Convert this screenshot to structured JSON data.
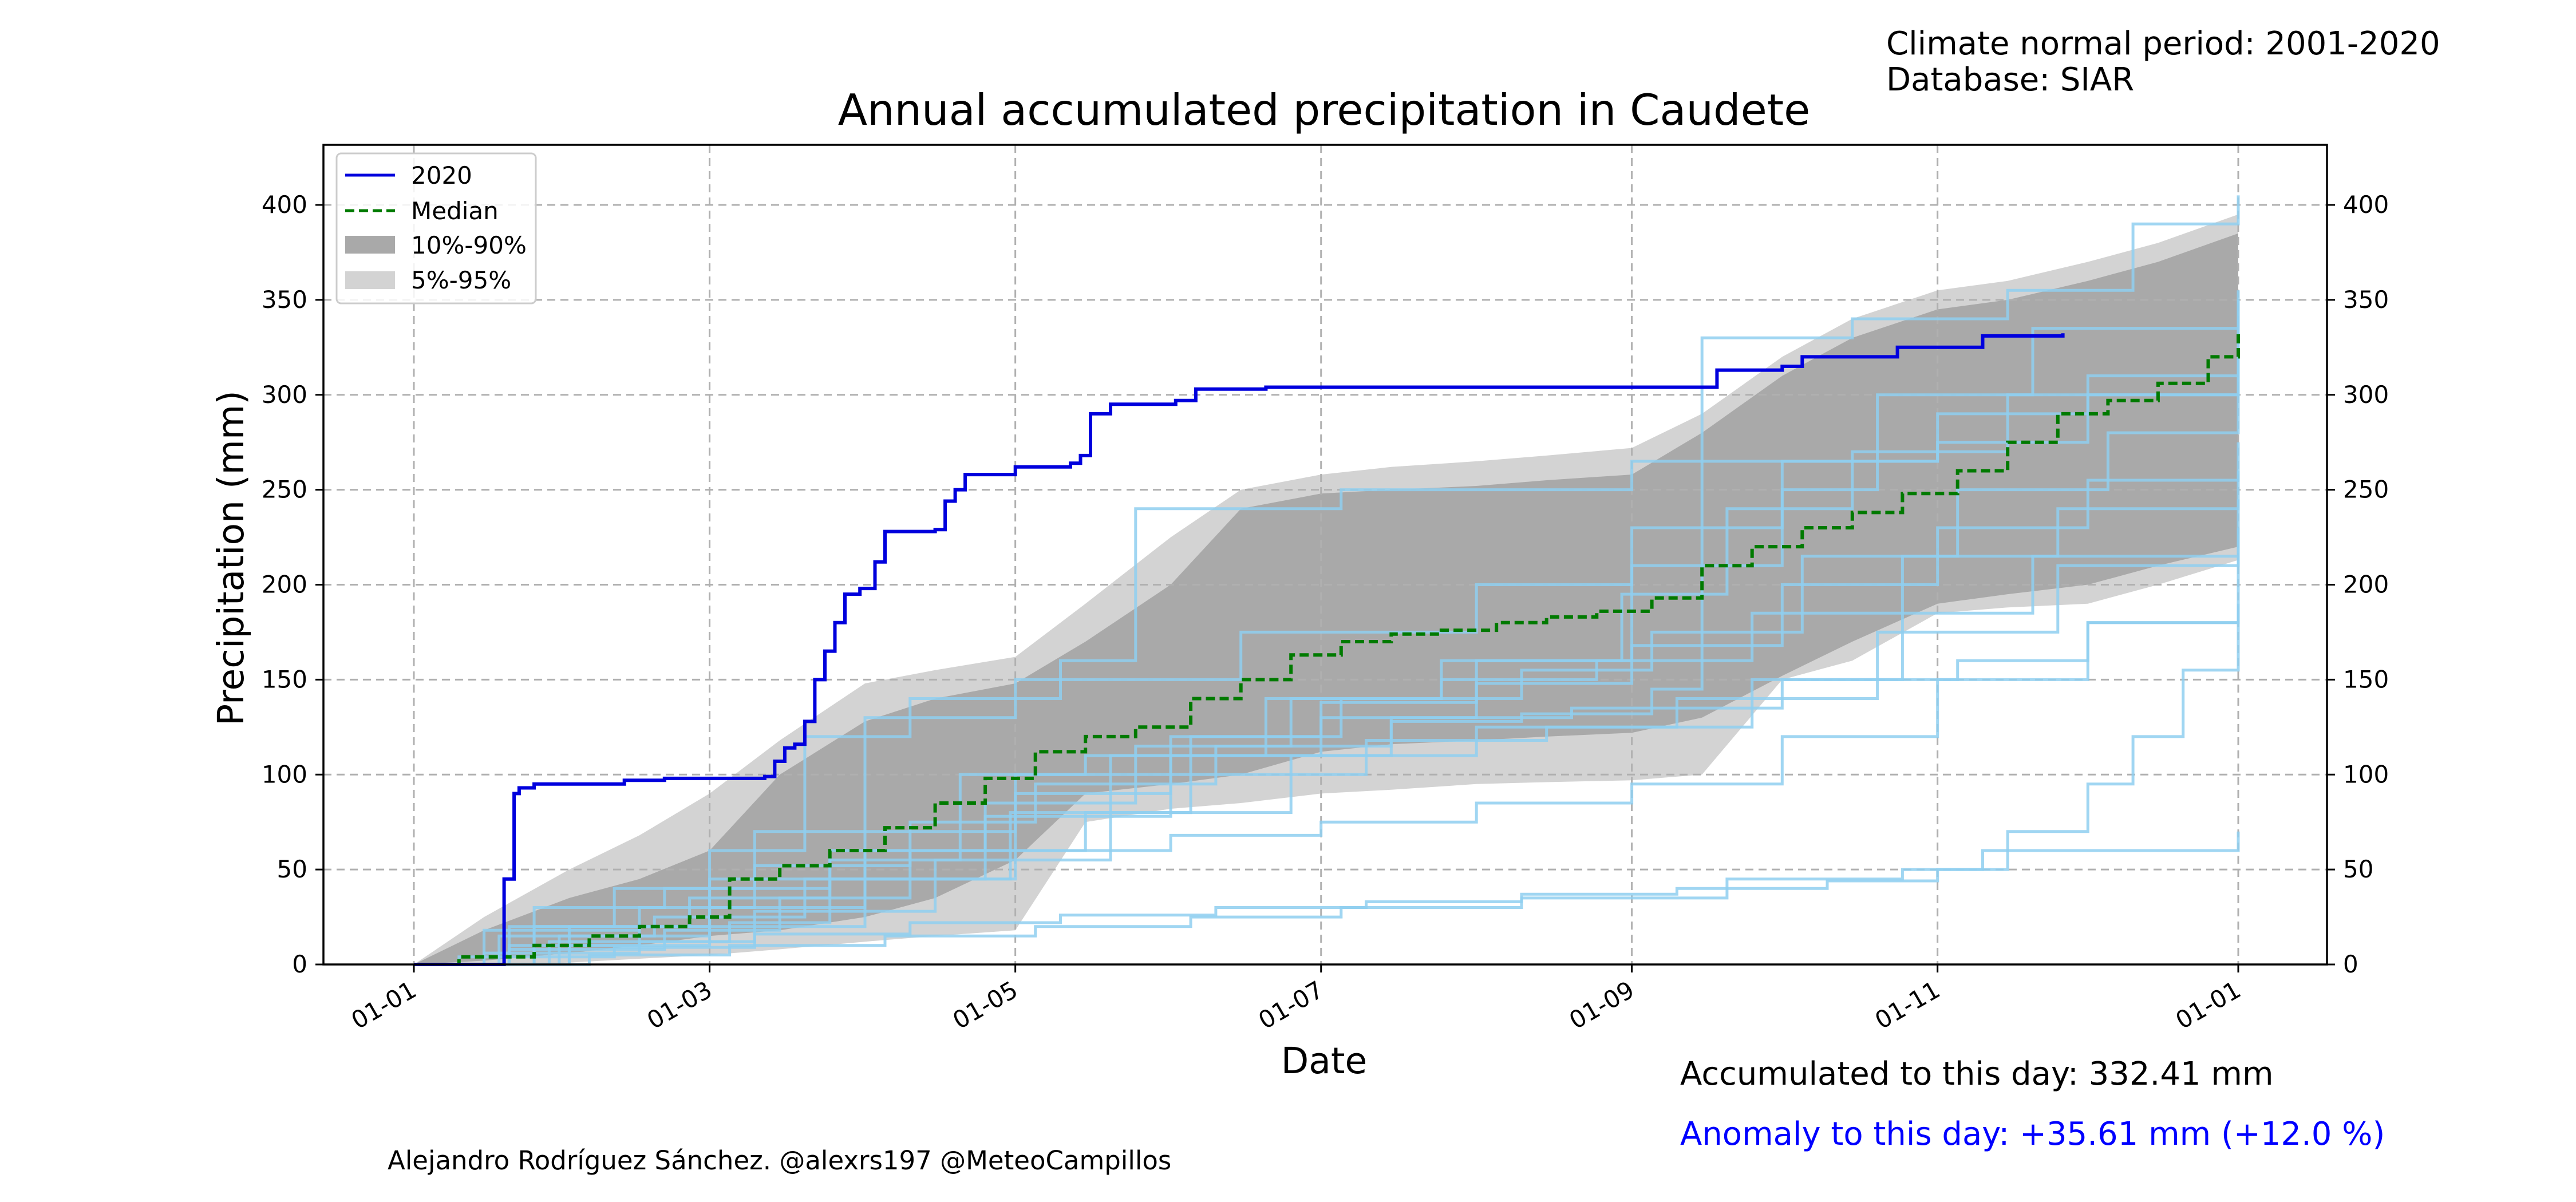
{
  "header": {
    "normal_period": "Climate normal period: 2001-2020",
    "database": "Database: SIAR"
  },
  "footer": {
    "accumulated": "Accumulated to this day: 332.41 mm",
    "anomaly": "Anomaly to this day: +35.61 mm (+12.0 %)",
    "credit": "Alejandro Rodríguez Sánchez. @alexrs197 @MeteoCampillos"
  },
  "colors": {
    "current_year": "#0000dd",
    "median": "#007a00",
    "band_10_90": "#a9a9a9",
    "band_5_95": "#d3d3d3",
    "historical_years": "#8fcff0",
    "anomaly_text": "#0000ff"
  },
  "chart_data": {
    "type": "line",
    "title": "Annual accumulated precipitation in Caudete",
    "xlabel": "Date",
    "ylabel": "Precipitation (mm)",
    "x_ticks": [
      "01-01",
      "01-03",
      "01-05",
      "01-07",
      "01-09",
      "01-11",
      "01-01"
    ],
    "x_range": [
      "01-01",
      "12-31"
    ],
    "y_ticks": [
      0,
      50,
      100,
      150,
      200,
      250,
      300,
      350,
      400
    ],
    "ylim": [
      0,
      430
    ],
    "grid": true,
    "legend_position": "top-left",
    "legend": [
      "2020",
      "Median",
      "10%-90%",
      "5%-95%"
    ],
    "series": [
      {
        "name": "2020",
        "points": [
          [
            "01-01",
            0
          ],
          [
            "01-10",
            0
          ],
          [
            "01-17",
            0
          ],
          [
            "01-19",
            45
          ],
          [
            "01-21",
            90
          ],
          [
            "01-22",
            93
          ],
          [
            "01-25",
            95
          ],
          [
            "02-10",
            95
          ],
          [
            "02-12",
            97
          ],
          [
            "02-20",
            98
          ],
          [
            "03-10",
            98
          ],
          [
            "03-12",
            99
          ],
          [
            "03-14",
            107
          ],
          [
            "03-16",
            114
          ],
          [
            "03-18",
            116
          ],
          [
            "03-20",
            128
          ],
          [
            "03-22",
            150
          ],
          [
            "03-24",
            165
          ],
          [
            "03-26",
            180
          ],
          [
            "03-28",
            195
          ],
          [
            "03-31",
            198
          ],
          [
            "04-03",
            212
          ],
          [
            "04-05",
            228
          ],
          [
            "04-15",
            229
          ],
          [
            "04-17",
            244
          ],
          [
            "04-19",
            250
          ],
          [
            "04-21",
            258
          ],
          [
            "05-01",
            262
          ],
          [
            "05-12",
            264
          ],
          [
            "05-14",
            268
          ],
          [
            "05-16",
            290
          ],
          [
            "05-20",
            295
          ],
          [
            "06-02",
            297
          ],
          [
            "06-06",
            303
          ],
          [
            "06-20",
            304
          ],
          [
            "09-15",
            304
          ],
          [
            "09-18",
            313
          ],
          [
            "10-01",
            315
          ],
          [
            "10-05",
            320
          ],
          [
            "10-20",
            320
          ],
          [
            "10-24",
            325
          ],
          [
            "11-05",
            325
          ],
          [
            "11-10",
            331
          ],
          [
            "11-26",
            332.41
          ]
        ]
      },
      {
        "name": "Median",
        "points": [
          [
            "01-01",
            0
          ],
          [
            "01-10",
            4
          ],
          [
            "01-25",
            10
          ],
          [
            "02-05",
            15
          ],
          [
            "02-15",
            20
          ],
          [
            "02-25",
            25
          ],
          [
            "03-05",
            45
          ],
          [
            "03-15",
            52
          ],
          [
            "03-25",
            60
          ],
          [
            "04-05",
            72
          ],
          [
            "04-15",
            85
          ],
          [
            "04-25",
            98
          ],
          [
            "05-05",
            112
          ],
          [
            "05-15",
            120
          ],
          [
            "05-25",
            125
          ],
          [
            "06-05",
            140
          ],
          [
            "06-15",
            150
          ],
          [
            "06-25",
            163
          ],
          [
            "07-05",
            170
          ],
          [
            "07-15",
            174
          ],
          [
            "07-25",
            176
          ],
          [
            "08-05",
            180
          ],
          [
            "08-15",
            183
          ],
          [
            "08-25",
            186
          ],
          [
            "09-05",
            193
          ],
          [
            "09-15",
            210
          ],
          [
            "09-25",
            220
          ],
          [
            "10-05",
            230
          ],
          [
            "10-15",
            238
          ],
          [
            "10-25",
            248
          ],
          [
            "11-05",
            260
          ],
          [
            "11-15",
            275
          ],
          [
            "11-25",
            290
          ],
          [
            "12-05",
            297
          ],
          [
            "12-15",
            306
          ],
          [
            "12-25",
            320
          ],
          [
            "12-31",
            334
          ]
        ]
      }
    ],
    "bands": [
      {
        "name": "5%-95%",
        "x": [
          "01-01",
          "01-15",
          "02-01",
          "02-15",
          "03-01",
          "03-15",
          "04-01",
          "04-15",
          "05-01",
          "05-15",
          "06-01",
          "06-15",
          "07-01",
          "07-15",
          "08-01",
          "08-15",
          "09-01",
          "09-15",
          "10-01",
          "10-15",
          "11-01",
          "11-15",
          "12-01",
          "12-15",
          "12-31"
        ],
        "low": [
          0,
          0,
          1,
          3,
          5,
          8,
          12,
          15,
          18,
          75,
          82,
          85,
          90,
          92,
          95,
          96,
          97,
          100,
          150,
          160,
          185,
          188,
          190,
          200,
          213
        ],
        "high": [
          0,
          25,
          50,
          68,
          90,
          118,
          148,
          155,
          162,
          190,
          225,
          250,
          258,
          262,
          265,
          268,
          272,
          290,
          320,
          340,
          355,
          360,
          370,
          380,
          395
        ]
      },
      {
        "name": "10%-90%",
        "x": [
          "01-01",
          "01-15",
          "02-01",
          "02-15",
          "03-01",
          "03-15",
          "04-01",
          "04-15",
          "05-01",
          "05-15",
          "06-01",
          "06-15",
          "07-01",
          "07-15",
          "08-01",
          "08-15",
          "09-01",
          "09-15",
          "10-01",
          "10-15",
          "11-01",
          "11-15",
          "12-01",
          "12-15",
          "12-31"
        ],
        "low": [
          0,
          2,
          6,
          10,
          15,
          18,
          25,
          35,
          55,
          90,
          95,
          100,
          112,
          116,
          118,
          120,
          122,
          130,
          152,
          170,
          190,
          195,
          200,
          210,
          220
        ],
        "high": [
          0,
          18,
          35,
          45,
          60,
          100,
          128,
          140,
          148,
          170,
          200,
          240,
          248,
          250,
          252,
          255,
          258,
          280,
          310,
          330,
          345,
          350,
          360,
          370,
          385
        ]
      }
    ],
    "historical_years": [
      [
        [
          "01-01",
          0
        ],
        [
          "01-20",
          10
        ],
        [
          "02-15",
          20
        ],
        [
          "03-01",
          60
        ],
        [
          "03-20",
          120
        ],
        [
          "04-10",
          140
        ],
        [
          "05-10",
          160
        ],
        [
          "05-25",
          240
        ],
        [
          "07-05",
          250
        ],
        [
          "09-01",
          265
        ],
        [
          "11-01",
          275
        ],
        [
          "12-01",
          300
        ],
        [
          "12-31",
          355
        ]
      ],
      [
        [
          "01-01",
          0
        ],
        [
          "01-25",
          30
        ],
        [
          "02-20",
          40
        ],
        [
          "03-25",
          55
        ],
        [
          "04-20",
          100
        ],
        [
          "05-15",
          110
        ],
        [
          "07-15",
          130
        ],
        [
          "08-20",
          135
        ],
        [
          "10-01",
          150
        ],
        [
          "11-05",
          160
        ],
        [
          "12-01",
          180
        ],
        [
          "12-31",
          185
        ]
      ],
      [
        [
          "01-01",
          0
        ],
        [
          "02-05",
          5
        ],
        [
          "03-05",
          10
        ],
        [
          "04-05",
          15
        ],
        [
          "05-05",
          20
        ],
        [
          "06-05",
          25
        ],
        [
          "07-05",
          30
        ],
        [
          "08-10",
          35
        ],
        [
          "09-20",
          45
        ],
        [
          "10-25",
          50
        ],
        [
          "11-10",
          60
        ],
        [
          "12-31",
          70
        ]
      ],
      [
        [
          "01-01",
          0
        ],
        [
          "01-20",
          8
        ],
        [
          "02-20",
          18
        ],
        [
          "03-15",
          35
        ],
        [
          "04-10",
          60
        ],
        [
          "05-15",
          80
        ],
        [
          "06-25",
          110
        ],
        [
          "08-01",
          125
        ],
        [
          "09-10",
          140
        ],
        [
          "10-20",
          175
        ],
        [
          "11-25",
          210
        ],
        [
          "12-31",
          245
        ]
      ],
      [
        [
          "01-01",
          0
        ],
        [
          "01-15",
          6
        ],
        [
          "02-15",
          12
        ],
        [
          "03-10",
          28
        ],
        [
          "04-15",
          55
        ],
        [
          "05-20",
          110
        ],
        [
          "06-20",
          140
        ],
        [
          "07-25",
          160
        ],
        [
          "08-30",
          195
        ],
        [
          "09-20",
          240
        ],
        [
          "10-15",
          270
        ],
        [
          "11-15",
          300
        ],
        [
          "12-31",
          340
        ]
      ],
      [
        [
          "01-01",
          0
        ],
        [
          "01-28",
          12
        ],
        [
          "03-05",
          22
        ],
        [
          "03-25",
          45
        ],
        [
          "04-25",
          78
        ],
        [
          "06-01",
          100
        ],
        [
          "07-10",
          118
        ],
        [
          "08-15",
          125
        ],
        [
          "09-25",
          150
        ],
        [
          "10-25",
          185
        ],
        [
          "11-20",
          215
        ],
        [
          "12-31",
          230
        ]
      ],
      [
        [
          "01-01",
          0
        ],
        [
          "01-18",
          15
        ],
        [
          "02-18",
          25
        ],
        [
          "03-20",
          45
        ],
        [
          "04-30",
          80
        ],
        [
          "06-05",
          120
        ],
        [
          "07-05",
          140
        ],
        [
          "08-10",
          155
        ],
        [
          "09-05",
          175
        ],
        [
          "10-05",
          215
        ],
        [
          "11-05",
          250
        ],
        [
          "12-05",
          280
        ],
        [
          "12-31",
          300
        ]
      ],
      [
        [
          "01-01",
          0
        ],
        [
          "01-10",
          4
        ],
        [
          "02-10",
          9
        ],
        [
          "03-10",
          16
        ],
        [
          "04-10",
          22
        ],
        [
          "05-10",
          26
        ],
        [
          "06-10",
          30
        ],
        [
          "07-10",
          33
        ],
        [
          "08-10",
          37
        ],
        [
          "09-10",
          40
        ],
        [
          "10-10",
          44
        ],
        [
          "11-01",
          50
        ],
        [
          "11-15",
          70
        ],
        [
          "12-01",
          95
        ],
        [
          "12-10",
          120
        ],
        [
          "12-20",
          155
        ],
        [
          "12-31",
          190
        ]
      ],
      [
        [
          "01-01",
          0
        ],
        [
          "01-25",
          20
        ],
        [
          "02-25",
          35
        ],
        [
          "03-25",
          60
        ],
        [
          "04-25",
          85
        ],
        [
          "05-25",
          115
        ],
        [
          "06-25",
          140
        ],
        [
          "07-25",
          150
        ],
        [
          "08-25",
          160
        ],
        [
          "09-25",
          185
        ],
        [
          "10-25",
          215
        ],
        [
          "11-25",
          240
        ],
        [
          "12-31",
          260
        ]
      ],
      [
        [
          "01-01",
          0
        ],
        [
          "02-01",
          20
        ],
        [
          "03-01",
          45
        ],
        [
          "04-01",
          70
        ],
        [
          "05-01",
          100
        ],
        [
          "06-01",
          120
        ],
        [
          "07-01",
          138
        ],
        [
          "08-01",
          148
        ],
        [
          "09-01",
          168
        ],
        [
          "10-01",
          200
        ],
        [
          "11-01",
          230
        ],
        [
          "12-01",
          255
        ],
        [
          "12-31",
          275
        ]
      ],
      [
        [
          "01-01",
          0
        ],
        [
          "01-20",
          20
        ],
        [
          "02-10",
          40
        ],
        [
          "03-10",
          70
        ],
        [
          "04-01",
          130
        ],
        [
          "05-01",
          150
        ],
        [
          "06-15",
          175
        ],
        [
          "08-01",
          200
        ],
        [
          "09-01",
          210
        ],
        [
          "10-01",
          250
        ],
        [
          "10-20",
          300
        ],
        [
          "11-20",
          335
        ],
        [
          "12-31",
          350
        ]
      ],
      [
        [
          "01-01",
          0
        ],
        [
          "01-15",
          18
        ],
        [
          "02-15",
          30
        ],
        [
          "03-10",
          52
        ],
        [
          "04-10",
          75
        ],
        [
          "05-05",
          95
        ],
        [
          "06-10",
          115
        ],
        [
          "07-15",
          128
        ],
        [
          "08-10",
          132
        ],
        [
          "09-05",
          145
        ],
        [
          "09-15",
          330
        ],
        [
          "10-15",
          340
        ],
        [
          "11-15",
          355
        ],
        [
          "12-10",
          390
        ],
        [
          "12-31",
          405
        ]
      ],
      [
        [
          "01-01",
          0
        ],
        [
          "01-30",
          15
        ],
        [
          "03-01",
          30
        ],
        [
          "04-01",
          45
        ],
        [
          "05-01",
          60
        ],
        [
          "06-01",
          68
        ],
        [
          "07-01",
          75
        ],
        [
          "08-01",
          85
        ],
        [
          "09-01",
          95
        ],
        [
          "10-01",
          120
        ],
        [
          "11-01",
          150
        ],
        [
          "12-01",
          180
        ],
        [
          "12-31",
          215
        ]
      ],
      [
        [
          "01-01",
          0
        ],
        [
          "02-01",
          10
        ],
        [
          "03-01",
          20
        ],
        [
          "04-01",
          60
        ],
        [
          "05-01",
          90
        ],
        [
          "06-01",
          110
        ],
        [
          "07-01",
          130
        ],
        [
          "08-01",
          160
        ],
        [
          "09-01",
          230
        ],
        [
          "10-01",
          265
        ],
        [
          "11-01",
          290
        ],
        [
          "12-01",
          310
        ],
        [
          "12-31",
          320
        ]
      ]
    ]
  }
}
